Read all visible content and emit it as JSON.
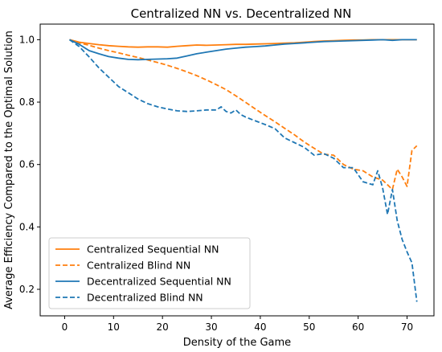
{
  "chart_data": {
    "type": "line",
    "title": "Centralized NN vs. Decentralized NN",
    "xlabel": "Density of the Game",
    "ylabel": "Average Efficiency Compared to the Optimal Solution",
    "xlim": [
      -5,
      75.5
    ],
    "ylim": [
      0.115,
      1.05
    ],
    "xticks": [
      0,
      10,
      20,
      30,
      40,
      50,
      60,
      70
    ],
    "yticks": [
      0.2,
      0.4,
      0.6,
      0.8,
      1.0
    ],
    "ytick_labels": [
      "0.2",
      "0.4",
      "0.6",
      "0.8",
      "1.0"
    ],
    "grid": false,
    "legend": "lower-left",
    "series": [
      {
        "name": "Centralized Sequential NN",
        "color": "#ff7f0e",
        "dash": "solid",
        "x": [
          1,
          3,
          5,
          7,
          9,
          11,
          13,
          15,
          17,
          19,
          21,
          23,
          25,
          27,
          29,
          31,
          33,
          35,
          37,
          39,
          41,
          43,
          45,
          47,
          49,
          51,
          53,
          55,
          57,
          59,
          61,
          63,
          65,
          67,
          69,
          72
        ],
        "y": [
          1.0,
          0.992,
          0.988,
          0.984,
          0.981,
          0.979,
          0.977,
          0.976,
          0.977,
          0.977,
          0.976,
          0.979,
          0.981,
          0.983,
          0.982,
          0.983,
          0.984,
          0.985,
          0.985,
          0.986,
          0.987,
          0.988,
          0.989,
          0.99,
          0.992,
          0.994,
          0.996,
          0.997,
          0.998,
          0.999,
          0.999,
          1.0,
          1.0,
          1.0,
          1.0,
          1.0
        ]
      },
      {
        "name": "Centralized Blind NN",
        "color": "#ff7f0e",
        "dash": "dashed",
        "x": [
          1,
          3,
          5,
          7,
          9,
          11,
          13,
          15,
          17,
          19,
          21,
          23,
          25,
          27,
          29,
          31,
          33,
          35,
          37,
          39,
          41,
          43,
          45,
          47,
          49,
          51,
          53,
          55,
          57,
          59,
          61,
          63,
          65,
          67,
          68,
          69,
          70,
          71,
          72
        ],
        "y": [
          1.0,
          0.99,
          0.982,
          0.973,
          0.965,
          0.958,
          0.95,
          0.943,
          0.935,
          0.927,
          0.918,
          0.908,
          0.897,
          0.885,
          0.871,
          0.856,
          0.84,
          0.82,
          0.799,
          0.778,
          0.757,
          0.737,
          0.716,
          0.695,
          0.672,
          0.652,
          0.633,
          0.63,
          0.6,
          0.585,
          0.58,
          0.56,
          0.55,
          0.52,
          0.585,
          0.56,
          0.53,
          0.645,
          0.66
        ]
      },
      {
        "name": "Decentralized Sequential NN",
        "color": "#1f77b4",
        "dash": "solid",
        "x": [
          1,
          3,
          5,
          7,
          9,
          11,
          13,
          15,
          17,
          19,
          21,
          23,
          25,
          27,
          29,
          31,
          33,
          35,
          37,
          39,
          41,
          43,
          45,
          47,
          49,
          51,
          53,
          55,
          57,
          59,
          61,
          63,
          65,
          67,
          69,
          72
        ],
        "y": [
          1.0,
          0.985,
          0.965,
          0.955,
          0.946,
          0.941,
          0.937,
          0.936,
          0.937,
          0.938,
          0.939,
          0.941,
          0.948,
          0.955,
          0.96,
          0.965,
          0.97,
          0.973,
          0.976,
          0.978,
          0.98,
          0.983,
          0.986,
          0.988,
          0.99,
          0.992,
          0.994,
          0.995,
          0.996,
          0.997,
          0.998,
          0.999,
          1.0,
          0.998,
          1.0,
          1.0
        ]
      },
      {
        "name": "Decentralized Blind NN",
        "color": "#1f77b4",
        "dash": "dashed",
        "x": [
          1,
          3,
          5,
          7,
          9,
          11,
          13,
          15,
          17,
          19,
          21,
          23,
          25,
          27,
          29,
          31,
          32,
          33,
          34,
          35,
          36,
          37,
          39,
          41,
          43,
          45,
          47,
          49,
          51,
          53,
          55,
          57,
          59,
          61,
          63,
          64,
          65,
          66,
          67,
          68,
          69,
          70,
          71,
          72
        ],
        "y": [
          1.0,
          0.978,
          0.945,
          0.91,
          0.88,
          0.85,
          0.83,
          0.81,
          0.795,
          0.785,
          0.778,
          0.772,
          0.77,
          0.772,
          0.775,
          0.775,
          0.785,
          0.77,
          0.765,
          0.775,
          0.76,
          0.752,
          0.74,
          0.728,
          0.715,
          0.685,
          0.67,
          0.655,
          0.63,
          0.635,
          0.62,
          0.59,
          0.59,
          0.545,
          0.535,
          0.58,
          0.525,
          0.44,
          0.52,
          0.42,
          0.36,
          0.32,
          0.285,
          0.16
        ]
      }
    ]
  }
}
